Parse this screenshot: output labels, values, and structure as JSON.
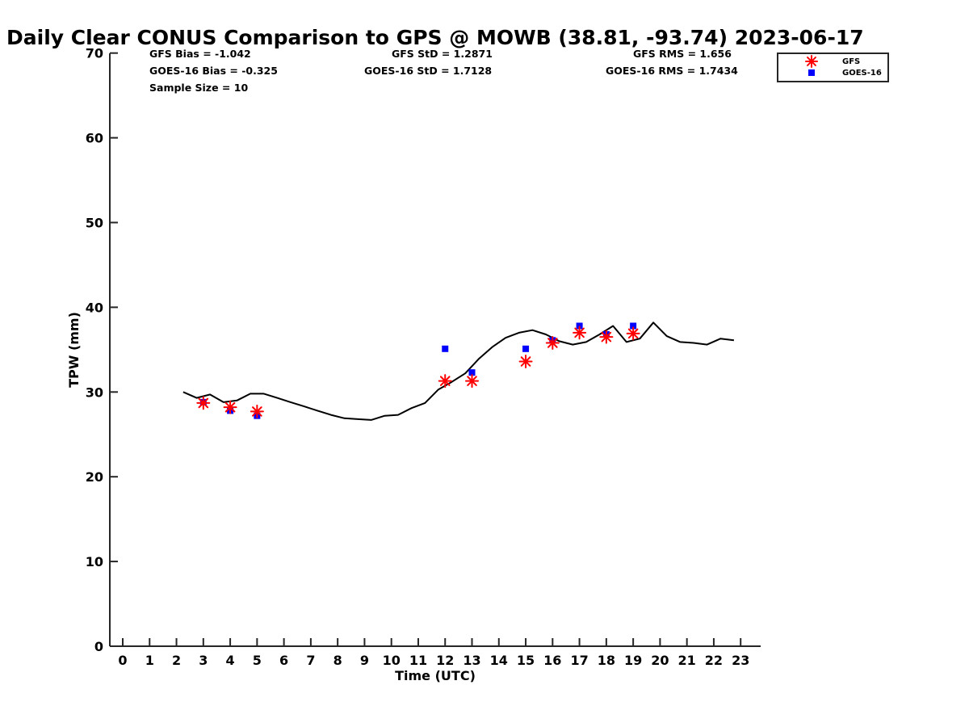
{
  "chart_data": {
    "type": "scatter",
    "title": "Daily Clear CONUS Comparison to GPS @ MOWB (38.81, -93.74) 2023-06-17",
    "xlabel": "Time (UTC)",
    "ylabel": "TPW (mm)",
    "xlim": [
      -0.5,
      23.7
    ],
    "ylim": [
      0,
      70
    ],
    "x_ticks": [
      0,
      1,
      2,
      3,
      4,
      5,
      6,
      7,
      8,
      9,
      10,
      11,
      12,
      13,
      14,
      15,
      16,
      17,
      18,
      19,
      20,
      21,
      22,
      23
    ],
    "y_ticks": [
      0,
      10,
      20,
      30,
      40,
      50,
      60,
      70
    ],
    "grid": false,
    "legend_position": "top-right",
    "stats": {
      "gfs_bias": "GFS Bias = -1.042",
      "goes_bias": "GOES-16 Bias = -0.325",
      "sample_size": "Sample Size = 10",
      "gfs_std": "GFS StD = 1.2871",
      "goes_std": "GOES-16 StD = 1.7128",
      "gfs_rms": "GFS RMS = 1.656",
      "goes_rms": "GOES-16 RMS = 1.7434"
    },
    "series": [
      {
        "marker": "line",
        "color": "#000000",
        "x": [
          2.25,
          2.75,
          3.25,
          3.75,
          4.25,
          4.75,
          5.25,
          5.75,
          6.25,
          6.75,
          7.25,
          7.75,
          8.25,
          8.75,
          9.25,
          9.75,
          10.25,
          10.75,
          11.25,
          11.75,
          12.25,
          12.75,
          13.25,
          13.75,
          14.25,
          14.75,
          15.25,
          15.75,
          16.25,
          16.75,
          17.25,
          17.75,
          18.25,
          18.75,
          19.25,
          19.75,
          20.25,
          20.75,
          21.25,
          21.75,
          22.25,
          22.75
        ],
        "y": [
          30.0,
          29.3,
          29.7,
          28.8,
          29.0,
          29.8,
          29.8,
          29.3,
          28.8,
          28.3,
          27.8,
          27.3,
          26.9,
          26.8,
          26.7,
          27.2,
          27.3,
          28.1,
          28.7,
          30.3,
          31.2,
          32.2,
          33.9,
          35.3,
          36.4,
          37.0,
          37.3,
          36.8,
          36.0,
          35.6,
          35.9,
          36.8,
          37.8,
          35.9,
          36.3,
          38.2,
          36.6,
          35.9,
          35.8,
          35.6,
          36.3,
          36.1
        ]
      },
      {
        "name": "GFS",
        "marker": "asterisk",
        "color": "#ff0000",
        "x": [
          3,
          4,
          5,
          12,
          13,
          15,
          16,
          17,
          18,
          19
        ],
        "y": [
          28.7,
          28.2,
          27.7,
          31.3,
          31.3,
          33.6,
          35.8,
          37.0,
          36.5,
          36.9
        ]
      },
      {
        "name": "GOES-16",
        "marker": "square",
        "color": "#0000ff",
        "x": [
          3,
          4,
          5,
          12,
          13,
          15,
          16,
          17,
          18,
          19
        ],
        "y": [
          28.8,
          27.8,
          27.2,
          35.1,
          32.3,
          35.1,
          36.1,
          37.8,
          36.8,
          37.8
        ]
      }
    ]
  }
}
